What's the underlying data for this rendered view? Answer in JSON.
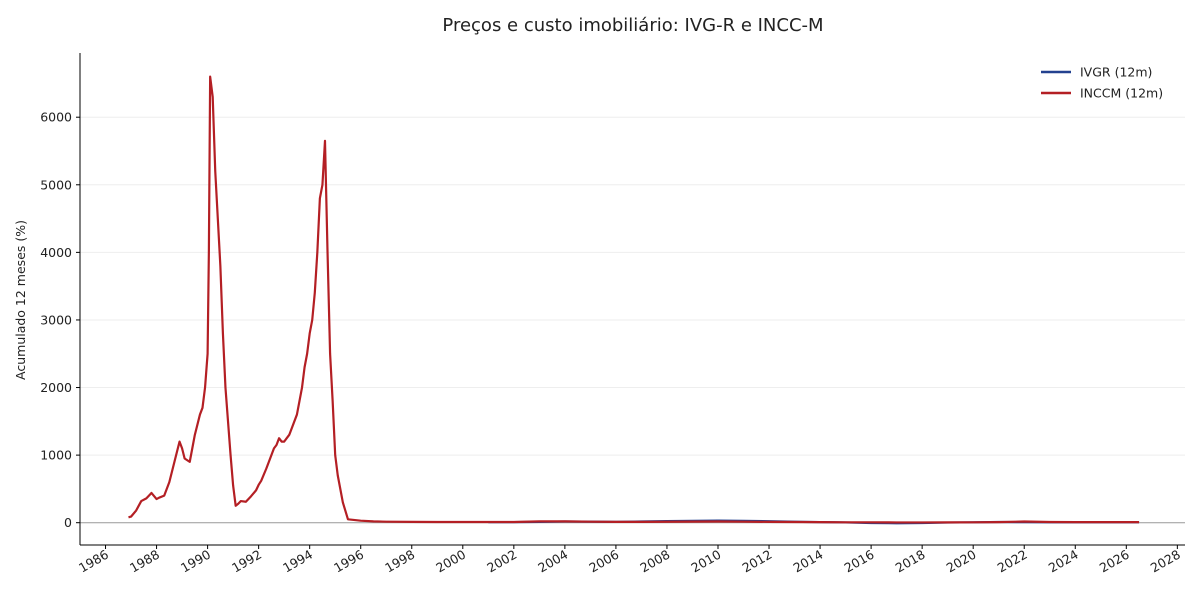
{
  "chart_data": {
    "type": "line",
    "title": "Preços e custo imobiliário: IVG-R e INCC-M",
    "xlabel": "",
    "ylabel": "Acumulado 12 meses (%)",
    "xlim": [
      1985.0,
      2028.3
    ],
    "ylim": [
      -330,
      6950
    ],
    "x_ticks": [
      "1986",
      "1988",
      "1990",
      "1992",
      "1994",
      "1996",
      "1998",
      "2000",
      "2002",
      "2004",
      "2006",
      "2008",
      "2010",
      "2012",
      "2014",
      "2016",
      "2018",
      "2020",
      "2022",
      "2024",
      "2026",
      "2028"
    ],
    "y_ticks": [
      0,
      1000,
      2000,
      3000,
      4000,
      5000,
      6000
    ],
    "grid": "horizontal",
    "zero_line": true,
    "legend_position": "top-right",
    "colors": {
      "IVGR": "#23418f",
      "INCCM": "#b41f24",
      "zero_line": "#999999",
      "grid": "#eeeeee"
    },
    "series": [
      {
        "name": "IVGR (12m)",
        "x": [
          2001.0,
          2002.0,
          2003.0,
          2004.0,
          2005.0,
          2006.0,
          2007.0,
          2008.0,
          2009.0,
          2010.0,
          2011.0,
          2012.0,
          2013.0,
          2014.0,
          2015.0,
          2016.0,
          2017.0,
          2018.0,
          2019.0,
          2020.0,
          2021.0,
          2022.0,
          2023.0,
          2024.0,
          2025.0,
          2026.5
        ],
        "y": [
          8,
          9,
          12,
          18,
          16,
          12,
          18,
          24,
          28,
          32,
          28,
          22,
          14,
          8,
          4,
          -4,
          -8,
          -4,
          2,
          6,
          10,
          8,
          6,
          6,
          6,
          6
        ]
      },
      {
        "name": "INCCM (12m)",
        "x": [
          1986.9,
          1987.0,
          1987.2,
          1987.4,
          1987.6,
          1987.8,
          1988.0,
          1988.1,
          1988.3,
          1988.5,
          1988.7,
          1988.9,
          1989.0,
          1989.1,
          1989.3,
          1989.4,
          1989.5,
          1989.7,
          1989.8,
          1989.9,
          1990.0,
          1990.05,
          1990.1,
          1990.2,
          1990.3,
          1990.5,
          1990.6,
          1990.7,
          1990.8,
          1990.9,
          1991.0,
          1991.1,
          1991.2,
          1991.3,
          1991.5,
          1991.7,
          1991.9,
          1992.0,
          1992.1,
          1992.3,
          1992.4,
          1992.5,
          1992.6,
          1992.7,
          1992.8,
          1992.9,
          1993.0,
          1993.1,
          1993.2,
          1993.3,
          1993.5,
          1993.6,
          1993.7,
          1993.8,
          1993.9,
          1994.0,
          1994.1,
          1994.2,
          1994.3,
          1994.4,
          1994.5,
          1994.6,
          1994.7,
          1994.8,
          1994.9,
          1995.0,
          1995.1,
          1995.3,
          1995.5,
          1996.0,
          1996.5,
          1997.0,
          1998.0,
          1999.0,
          2000.0,
          2001.0,
          2002.0,
          2003.0,
          2004.0,
          2005.0,
          2006.0,
          2007.0,
          2008.0,
          2009.0,
          2010.0,
          2011.0,
          2012.0,
          2013.0,
          2014.0,
          2015.0,
          2016.0,
          2017.0,
          2018.0,
          2019.0,
          2020.0,
          2021.0,
          2022.0,
          2023.0,
          2024.0,
          2025.0,
          2026.5
        ],
        "y": [
          80,
          90,
          180,
          320,
          360,
          440,
          350,
          370,
          400,
          600,
          900,
          1200,
          1100,
          950,
          900,
          1100,
          1300,
          1600,
          1700,
          2000,
          2500,
          4000,
          6600,
          6300,
          5200,
          3800,
          2800,
          2000,
          1500,
          1000,
          550,
          250,
          280,
          320,
          310,
          390,
          480,
          560,
          620,
          800,
          900,
          1000,
          1100,
          1150,
          1250,
          1200,
          1200,
          1250,
          1300,
          1400,
          1600,
          1800,
          2000,
          2300,
          2500,
          2800,
          3000,
          3400,
          4000,
          4800,
          5000,
          5650,
          4000,
          2500,
          1800,
          1000,
          700,
          300,
          50,
          30,
          20,
          15,
          12,
          10,
          10,
          10,
          10,
          20,
          20,
          15,
          12,
          12,
          14,
          16,
          18,
          15,
          12,
          10,
          8,
          6,
          6,
          4,
          4,
          5,
          6,
          8,
          18,
          10,
          8,
          8,
          8
        ]
      }
    ]
  }
}
